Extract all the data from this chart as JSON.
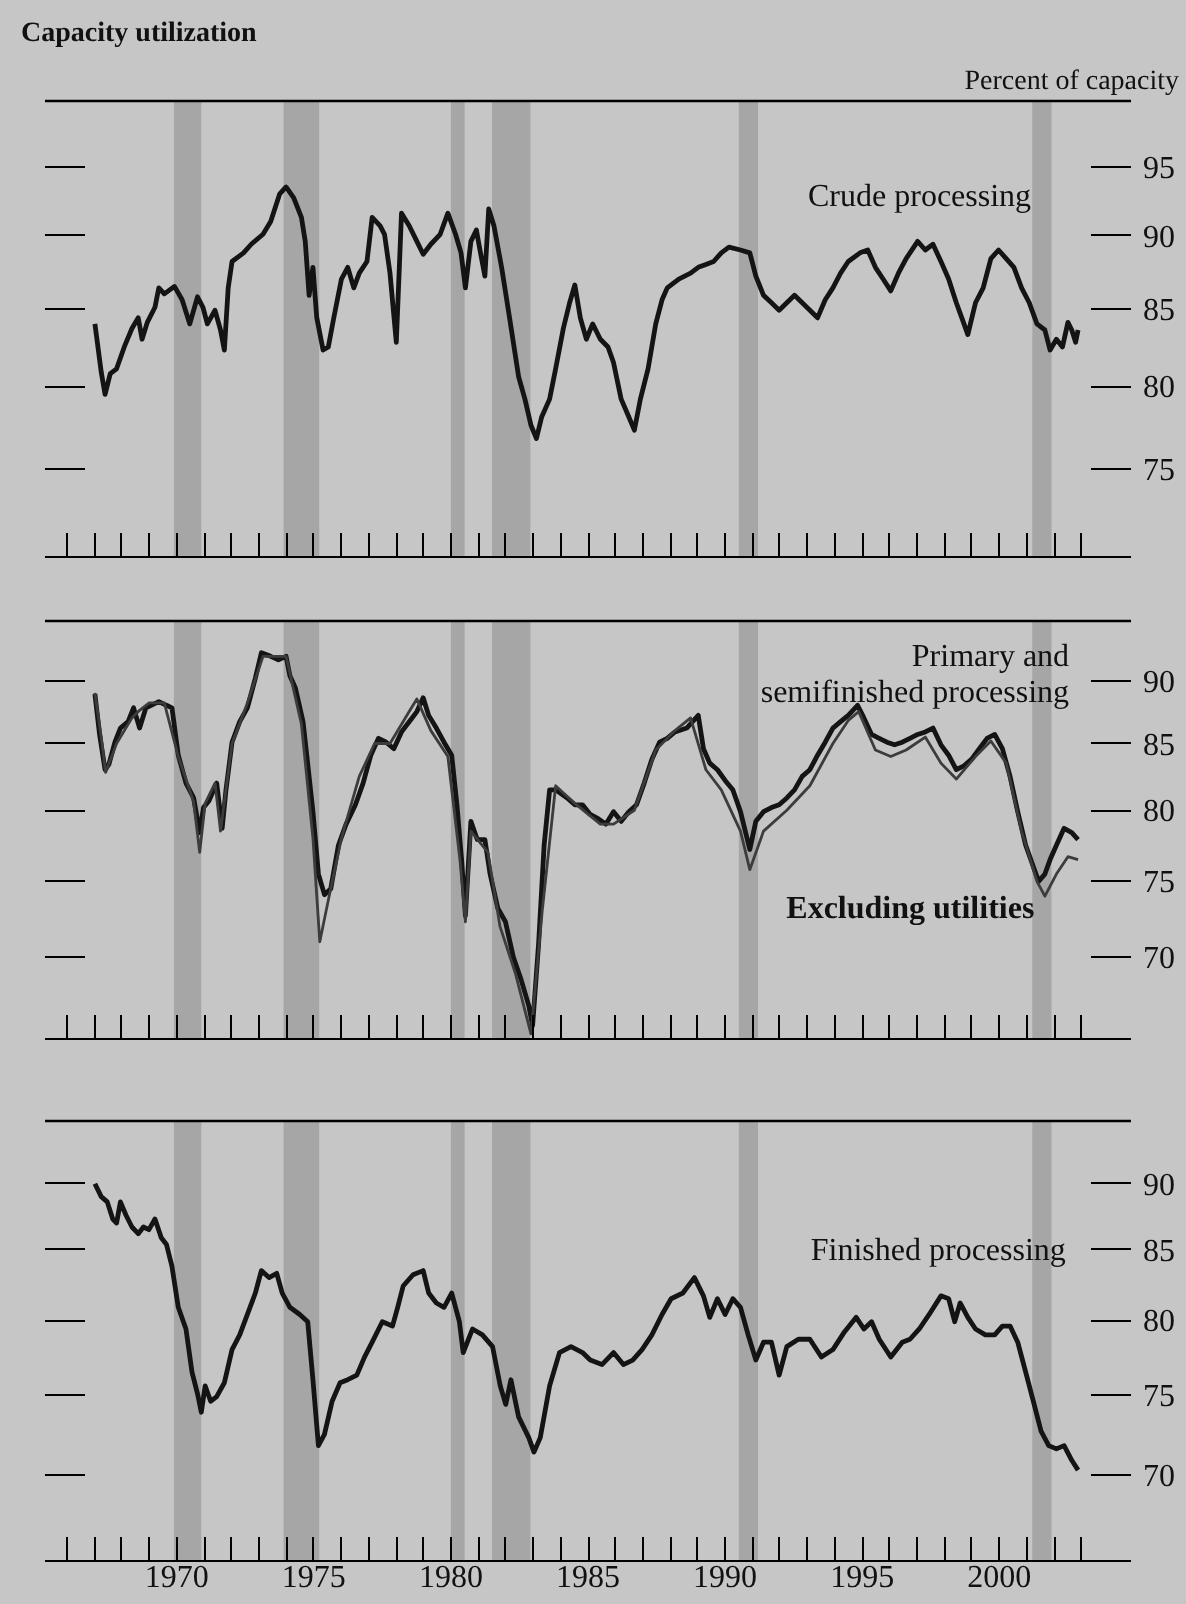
{
  "chart_data": [
    {
      "type": "line",
      "title": "Capacity utilization",
      "ylabel": "Percent of capacity",
      "log": "y",
      "grid": false,
      "legend": false,
      "marker": "none",
      "line_style": "solid",
      "tick_labels": "y",
      "xlim": [
        1965.2,
        2004.8
      ],
      "ylim": [
        70,
        100
      ],
      "yticks": [
        75,
        80,
        85,
        90,
        95
      ],
      "xticks": [
        {
          "value": 1966,
          "label": null
        },
        {
          "value": 1967,
          "label": null
        },
        {
          "value": 1968,
          "label": null
        },
        {
          "value": 1969,
          "label": null
        },
        {
          "value": 1970,
          "label": null
        },
        {
          "value": 1971,
          "label": null
        },
        {
          "value": 1972,
          "label": null
        },
        {
          "value": 1973,
          "label": null
        },
        {
          "value": 1974,
          "label": null
        },
        {
          "value": 1975,
          "label": null
        },
        {
          "value": 1976,
          "label": null
        },
        {
          "value": 1977,
          "label": null
        },
        {
          "value": 1978,
          "label": null
        },
        {
          "value": 1979,
          "label": null
        },
        {
          "value": 1980,
          "label": null
        },
        {
          "value": 1981,
          "label": null
        },
        {
          "value": 1982,
          "label": null
        },
        {
          "value": 1983,
          "label": null
        },
        {
          "value": 1984,
          "label": null
        },
        {
          "value": 1985,
          "label": null
        },
        {
          "value": 1986,
          "label": null
        },
        {
          "value": 1987,
          "label": null
        },
        {
          "value": 1988,
          "label": null
        },
        {
          "value": 1989,
          "label": null
        },
        {
          "value": 1990,
          "label": null
        },
        {
          "value": 1991,
          "label": null
        },
        {
          "value": 1992,
          "label": null
        },
        {
          "value": 1993,
          "label": null
        },
        {
          "value": 1994,
          "label": null
        },
        {
          "value": 1995,
          "label": null
        },
        {
          "value": 1996,
          "label": null
        },
        {
          "value": 1997,
          "label": null
        },
        {
          "value": 1998,
          "label": null
        },
        {
          "value": 1999,
          "label": null
        },
        {
          "value": 2000,
          "label": null
        },
        {
          "value": 2001,
          "label": null
        },
        {
          "value": 2002,
          "label": null
        },
        {
          "value": 2003,
          "label": null
        }
      ],
      "bands": [
        {
          "axis": "x",
          "from": 1969.9,
          "to": 1970.9,
          "color": "#a6a6a6"
        },
        {
          "axis": "x",
          "from": 1973.9,
          "to": 1975.2,
          "color": "#a6a6a6"
        },
        {
          "axis": "x",
          "from": 1980.0,
          "to": 1980.5,
          "color": "#a6a6a6"
        },
        {
          "axis": "x",
          "from": 1981.5,
          "to": 1982.9,
          "color": "#a6a6a6"
        },
        {
          "axis": "x",
          "from": 1990.5,
          "to": 1991.2,
          "color": "#a6a6a6"
        },
        {
          "axis": "x",
          "from": 2001.2,
          "to": 2001.9,
          "color": "#a6a6a6"
        }
      ],
      "series": [
        {
          "name": "Crude processing",
          "color": "#141414",
          "x": [
            1967.02,
            1967.25,
            1967.39,
            1967.58,
            1967.81,
            1968.09,
            1968.37,
            1968.6,
            1968.74,
            1968.93,
            1969.21,
            1969.35,
            1969.55,
            1969.92,
            1970.2,
            1970.48,
            1970.76,
            1970.96,
            1971.12,
            1971.4,
            1971.6,
            1971.74,
            1971.88,
            1972.02,
            1972.44,
            1972.72,
            1973.15,
            1973.43,
            1973.76,
            1973.99,
            1974.27,
            1974.55,
            1974.69,
            1974.83,
            1974.97,
            1975.11,
            1975.34,
            1975.53,
            1975.73,
            1976.01,
            1976.24,
            1976.46,
            1976.66,
            1976.94,
            1977.13,
            1977.42,
            1977.58,
            1977.78,
            1978.01,
            1978.2,
            1978.48,
            1978.76,
            1978.99,
            1979.27,
            1979.61,
            1979.89,
            1980.17,
            1980.37,
            1980.53,
            1980.73,
            1980.93,
            1981.07,
            1981.24,
            1981.38,
            1981.57,
            1981.85,
            1982.14,
            1982.47,
            1982.7,
            1982.92,
            1983.12,
            1983.31,
            1983.6,
            1983.82,
            1984.1,
            1984.33,
            1984.52,
            1984.72,
            1984.94,
            1985.17,
            1985.45,
            1985.73,
            1985.93,
            1986.21,
            1986.49,
            1986.69,
            1986.91,
            1987.19,
            1987.47,
            1987.7,
            1987.89,
            1988.31,
            1988.74,
            1989.02,
            1989.3,
            1989.58,
            1989.86,
            1990.14,
            1990.56,
            1990.9,
            1991.12,
            1991.4,
            1991.69,
            1991.97,
            1992.25,
            1992.53,
            1992.81,
            1993.09,
            1993.37,
            1993.65,
            1993.93,
            1994.21,
            1994.49,
            1994.92,
            1995.2,
            1995.48,
            1995.76,
            1996.04,
            1996.32,
            1996.6,
            1997.02,
            1997.3,
            1997.58,
            1997.87,
            1998.15,
            1998.43,
            1998.71,
            1998.85,
            1999.13,
            1999.41,
            1999.69,
            1999.97,
            2000.25,
            2000.53,
            2000.81,
            2001.09,
            2001.37,
            2001.66,
            2001.85,
            2002.08,
            2002.3,
            2002.5,
            2002.64,
            2002.78,
            2002.87
          ],
          "values": [
            84.0,
            80.9,
            79.5,
            80.8,
            81.1,
            82.5,
            83.7,
            84.4,
            83.0,
            84.1,
            85.1,
            86.4,
            86.0,
            86.5,
            85.6,
            84.0,
            85.8,
            85.1,
            84.0,
            84.9,
            83.6,
            82.3,
            86.4,
            88.2,
            88.8,
            89.4,
            90.1,
            91.0,
            93.0,
            93.5,
            92.7,
            91.3,
            89.6,
            85.9,
            87.8,
            84.4,
            82.3,
            82.5,
            84.4,
            87.0,
            87.8,
            86.4,
            87.4,
            88.2,
            91.3,
            90.7,
            90.1,
            87.4,
            82.8,
            91.6,
            90.7,
            89.6,
            88.7,
            89.4,
            90.1,
            91.6,
            90.1,
            88.8,
            86.4,
            89.6,
            90.4,
            88.9,
            87.2,
            91.9,
            90.7,
            87.8,
            84.4,
            80.6,
            79.2,
            77.6,
            76.8,
            78.1,
            79.2,
            81.1,
            83.7,
            85.4,
            86.6,
            84.4,
            83.0,
            84.0,
            83.0,
            82.5,
            81.5,
            79.2,
            78.1,
            77.3,
            79.2,
            81.1,
            84.0,
            85.6,
            86.4,
            87.0,
            87.4,
            87.8,
            88.0,
            88.2,
            88.8,
            89.2,
            89.0,
            88.8,
            87.2,
            85.9,
            85.4,
            84.9,
            85.4,
            85.9,
            85.4,
            84.9,
            84.4,
            85.6,
            86.4,
            87.4,
            88.2,
            88.8,
            89.0,
            87.8,
            87.0,
            86.2,
            87.4,
            88.4,
            89.6,
            89.0,
            89.4,
            88.2,
            87.0,
            85.4,
            84.0,
            83.3,
            85.4,
            86.4,
            88.4,
            89.0,
            88.4,
            87.8,
            86.4,
            85.4,
            84.0,
            83.6,
            82.3,
            83.0,
            82.5,
            84.1,
            83.6,
            82.8,
            83.6
          ]
        }
      ]
    },
    {
      "type": "line",
      "log": "y",
      "grid": false,
      "legend": false,
      "marker": "none",
      "line_style": "solid",
      "tick_labels": "y",
      "xlim": [
        1965.2,
        2004.8
      ],
      "ylim": [
        65,
        95
      ],
      "yticks": [
        70,
        75,
        80,
        85,
        90
      ],
      "xticks": [
        {
          "value": 1966,
          "label": null
        },
        {
          "value": 1967,
          "label": null
        },
        {
          "value": 1968,
          "label": null
        },
        {
          "value": 1969,
          "label": null
        },
        {
          "value": 1970,
          "label": null
        },
        {
          "value": 1971,
          "label": null
        },
        {
          "value": 1972,
          "label": null
        },
        {
          "value": 1973,
          "label": null
        },
        {
          "value": 1974,
          "label": null
        },
        {
          "value": 1975,
          "label": null
        },
        {
          "value": 1976,
          "label": null
        },
        {
          "value": 1977,
          "label": null
        },
        {
          "value": 1978,
          "label": null
        },
        {
          "value": 1979,
          "label": null
        },
        {
          "value": 1980,
          "label": null
        },
        {
          "value": 1981,
          "label": null
        },
        {
          "value": 1982,
          "label": null
        },
        {
          "value": 1983,
          "label": null
        },
        {
          "value": 1984,
          "label": null
        },
        {
          "value": 1985,
          "label": null
        },
        {
          "value": 1986,
          "label": null
        },
        {
          "value": 1987,
          "label": null
        },
        {
          "value": 1988,
          "label": null
        },
        {
          "value": 1989,
          "label": null
        },
        {
          "value": 1990,
          "label": null
        },
        {
          "value": 1991,
          "label": null
        },
        {
          "value": 1992,
          "label": null
        },
        {
          "value": 1993,
          "label": null
        },
        {
          "value": 1994,
          "label": null
        },
        {
          "value": 1995,
          "label": null
        },
        {
          "value": 1996,
          "label": null
        },
        {
          "value": 1997,
          "label": null
        },
        {
          "value": 1998,
          "label": null
        },
        {
          "value": 1999,
          "label": null
        },
        {
          "value": 2000,
          "label": null
        },
        {
          "value": 2001,
          "label": null
        },
        {
          "value": 2002,
          "label": null
        },
        {
          "value": 2003,
          "label": null
        }
      ],
      "bands": [
        {
          "axis": "x",
          "from": 1969.9,
          "to": 1970.9,
          "color": "#a6a6a6"
        },
        {
          "axis": "x",
          "from": 1973.9,
          "to": 1975.2,
          "color": "#a6a6a6"
        },
        {
          "axis": "x",
          "from": 1980.0,
          "to": 1980.5,
          "color": "#a6a6a6"
        },
        {
          "axis": "x",
          "from": 1981.5,
          "to": 1982.9,
          "color": "#a6a6a6"
        },
        {
          "axis": "x",
          "from": 1990.5,
          "to": 1991.2,
          "color": "#a6a6a6"
        },
        {
          "axis": "x",
          "from": 2001.2,
          "to": 2001.9,
          "color": "#a6a6a6"
        }
      ],
      "series": [
        {
          "name": "Primary and\nsemifinished processing",
          "color": "#141414",
          "x": [
            1967.02,
            1967.19,
            1967.39,
            1967.53,
            1967.75,
            1967.95,
            1968.23,
            1968.43,
            1968.65,
            1968.88,
            1969.07,
            1969.35,
            1969.63,
            1969.83,
            1970.06,
            1970.34,
            1970.62,
            1970.84,
            1970.98,
            1971.18,
            1971.46,
            1971.66,
            1971.8,
            1972.02,
            1972.3,
            1972.58,
            1972.87,
            1973.09,
            1973.43,
            1973.71,
            1973.99,
            1974.13,
            1974.33,
            1974.61,
            1974.83,
            1974.97,
            1975.17,
            1975.39,
            1975.62,
            1975.9,
            1976.18,
            1976.52,
            1976.8,
            1977.08,
            1977.36,
            1977.64,
            1977.92,
            1978.2,
            1978.48,
            1978.76,
            1978.99,
            1979.19,
            1979.47,
            1979.75,
            1980.03,
            1980.22,
            1980.39,
            1980.53,
            1980.73,
            1980.96,
            1981.24,
            1981.43,
            1981.71,
            1981.99,
            1982.28,
            1982.56,
            1982.84,
            1982.98,
            1983.2,
            1983.4,
            1983.6,
            1983.82,
            1984.24,
            1984.52,
            1984.8,
            1985.08,
            1985.37,
            1985.65,
            1985.93,
            1986.21,
            1986.49,
            1986.77,
            1987.05,
            1987.33,
            1987.61,
            1987.89,
            1988.17,
            1988.6,
            1989.02,
            1989.21,
            1989.44,
            1989.72,
            1990.0,
            1990.28,
            1990.56,
            1990.9,
            1991.12,
            1991.4,
            1991.69,
            1991.97,
            1992.25,
            1992.53,
            1992.81,
            1993.09,
            1993.37,
            1993.65,
            1993.93,
            1994.21,
            1994.49,
            1994.83,
            1995.06,
            1995.34,
            1995.62,
            1995.9,
            1996.18,
            1996.46,
            1996.74,
            1997.02,
            1997.3,
            1997.58,
            1997.87,
            1998.15,
            1998.43,
            1998.71,
            1998.99,
            1999.27,
            1999.55,
            1999.83,
            2000.11,
            2000.39,
            2000.67,
            2000.96,
            2001.24,
            2001.43,
            2001.66,
            2001.85,
            2002.08,
            2002.36,
            2002.64,
            2002.87
          ],
          "values": [
            88.9,
            85.7,
            83.0,
            83.4,
            85.1,
            86.2,
            86.7,
            87.8,
            86.2,
            87.8,
            88.0,
            88.3,
            88.0,
            87.8,
            84.1,
            82.0,
            80.9,
            78.4,
            80.2,
            80.7,
            82.0,
            78.7,
            81.5,
            85.1,
            86.7,
            87.8,
            90.2,
            92.3,
            92.0,
            91.7,
            92.0,
            90.4,
            89.4,
            86.7,
            82.5,
            79.9,
            75.5,
            74.1,
            74.5,
            77.5,
            79.0,
            80.4,
            82.0,
            84.1,
            85.4,
            85.1,
            84.6,
            85.9,
            86.7,
            87.5,
            88.6,
            87.2,
            86.2,
            85.1,
            84.1,
            80.4,
            76.5,
            72.7,
            79.2,
            77.9,
            77.9,
            75.5,
            73.2,
            72.3,
            70.0,
            68.6,
            67.0,
            65.8,
            70.9,
            77.5,
            81.5,
            81.5,
            80.9,
            80.4,
            80.4,
            79.7,
            79.4,
            79.0,
            79.9,
            79.2,
            79.9,
            80.4,
            82.0,
            83.8,
            85.1,
            85.4,
            85.9,
            86.2,
            87.2,
            84.6,
            83.5,
            83.0,
            82.2,
            81.5,
            79.9,
            77.2,
            79.2,
            79.9,
            80.2,
            80.4,
            80.9,
            81.5,
            82.5,
            83.0,
            84.1,
            85.1,
            86.2,
            86.7,
            87.2,
            88.0,
            87.0,
            85.7,
            85.4,
            85.1,
            84.9,
            85.1,
            85.4,
            85.7,
            85.9,
            86.2,
            84.9,
            84.1,
            83.0,
            83.3,
            83.8,
            84.6,
            85.4,
            85.7,
            84.6,
            82.5,
            79.9,
            77.5,
            76.0,
            75.0,
            75.5,
            76.5,
            77.5,
            78.7,
            78.4,
            77.9
          ]
        },
        {
          "name": "Excluding utilities",
          "color": "#3c3c3c",
          "x": [
            1967.02,
            1967.25,
            1967.41,
            1967.81,
            1968.37,
            1968.65,
            1969.0,
            1969.55,
            1970.06,
            1970.62,
            1970.84,
            1971.04,
            1971.4,
            1971.6,
            1972.02,
            1972.55,
            1973.15,
            1973.99,
            1974.55,
            1974.97,
            1975.22,
            1975.56,
            1976.01,
            1976.66,
            1977.22,
            1977.78,
            1978.48,
            1978.76,
            1979.27,
            1979.89,
            1980.33,
            1980.53,
            1980.73,
            1981.35,
            1981.79,
            1982.35,
            1982.92,
            1983.33,
            1983.82,
            1984.52,
            1985.45,
            1985.93,
            1986.69,
            1987.47,
            1988.17,
            1988.74,
            1989.3,
            1989.86,
            1990.56,
            1990.9,
            1991.4,
            1992.25,
            1993.09,
            1993.93,
            1994.49,
            1994.87,
            1995.48,
            1996.04,
            1996.6,
            1997.3,
            1997.87,
            1998.43,
            1999.13,
            1999.69,
            2000.25,
            2000.81,
            2001.37,
            2001.66,
            2002.08,
            2002.5,
            2002.87
          ],
          "values": [
            89.0,
            85.5,
            82.8,
            85.0,
            87.0,
            87.6,
            88.2,
            88.2,
            84.0,
            80.6,
            77.0,
            80.5,
            82.0,
            78.5,
            85.0,
            88.0,
            92.0,
            92.0,
            86.5,
            78.0,
            71.0,
            74.0,
            78.0,
            82.5,
            85.0,
            85.0,
            87.5,
            88.5,
            86.0,
            84.0,
            76.5,
            72.3,
            78.5,
            77.0,
            72.0,
            69.0,
            65.3,
            73.0,
            81.8,
            80.5,
            79.0,
            79.0,
            80.0,
            84.5,
            86.0,
            87.0,
            83.0,
            81.5,
            78.5,
            75.8,
            78.5,
            80.0,
            81.8,
            85.0,
            86.8,
            87.5,
            84.5,
            84.0,
            84.5,
            85.5,
            83.5,
            82.3,
            84.0,
            85.2,
            83.5,
            78.5,
            75.0,
            74.0,
            75.5,
            76.7,
            76.5
          ]
        }
      ]
    },
    {
      "type": "line",
      "log": "y",
      "grid": false,
      "legend": false,
      "marker": "none",
      "line_style": "solid",
      "xlim": [
        1965.2,
        2004.8
      ],
      "ylim": [
        65,
        95
      ],
      "yticks": [
        70,
        75,
        80,
        85,
        90
      ],
      "xticks": [
        {
          "value": 1966,
          "label": null
        },
        {
          "value": 1967,
          "label": null
        },
        {
          "value": 1968,
          "label": null
        },
        {
          "value": 1969,
          "label": null
        },
        1970,
        {
          "value": 1971,
          "label": null
        },
        {
          "value": 1972,
          "label": null
        },
        {
          "value": 1973,
          "label": null
        },
        {
          "value": 1974,
          "label": null
        },
        1975,
        {
          "value": 1976,
          "label": null
        },
        {
          "value": 1977,
          "label": null
        },
        {
          "value": 1978,
          "label": null
        },
        {
          "value": 1979,
          "label": null
        },
        1980,
        {
          "value": 1981,
          "label": null
        },
        {
          "value": 1982,
          "label": null
        },
        {
          "value": 1983,
          "label": null
        },
        {
          "value": 1984,
          "label": null
        },
        1985,
        {
          "value": 1986,
          "label": null
        },
        {
          "value": 1987,
          "label": null
        },
        {
          "value": 1988,
          "label": null
        },
        {
          "value": 1989,
          "label": null
        },
        1990,
        {
          "value": 1991,
          "label": null
        },
        {
          "value": 1992,
          "label": null
        },
        {
          "value": 1993,
          "label": null
        },
        {
          "value": 1994,
          "label": null
        },
        1995,
        {
          "value": 1996,
          "label": null
        },
        {
          "value": 1997,
          "label": null
        },
        {
          "value": 1998,
          "label": null
        },
        {
          "value": 1999,
          "label": null
        },
        2000,
        {
          "value": 2001,
          "label": null
        },
        {
          "value": 2002,
          "label": null
        },
        {
          "value": 2003,
          "label": null
        }
      ],
      "bands": [
        {
          "axis": "x",
          "from": 1969.9,
          "to": 1970.9,
          "color": "#a6a6a6"
        },
        {
          "axis": "x",
          "from": 1973.9,
          "to": 1975.2,
          "color": "#a6a6a6"
        },
        {
          "axis": "x",
          "from": 1980.0,
          "to": 1980.5,
          "color": "#a6a6a6"
        },
        {
          "axis": "x",
          "from": 1981.5,
          "to": 1982.9,
          "color": "#a6a6a6"
        },
        {
          "axis": "x",
          "from": 1990.5,
          "to": 1991.2,
          "color": "#a6a6a6"
        },
        {
          "axis": "x",
          "from": 2001.2,
          "to": 2001.9,
          "color": "#a6a6a6"
        }
      ],
      "series": [
        {
          "name": "Finished processing",
          "color": "#141414",
          "x": [
            1967.02,
            1967.25,
            1967.47,
            1967.67,
            1967.81,
            1967.95,
            1968.15,
            1968.37,
            1968.6,
            1968.79,
            1968.99,
            1969.21,
            1969.44,
            1969.63,
            1969.83,
            1970.06,
            1970.34,
            1970.56,
            1970.76,
            1970.9,
            1971.04,
            1971.24,
            1971.46,
            1971.74,
            1972.02,
            1972.3,
            1972.58,
            1972.87,
            1973.09,
            1973.37,
            1973.65,
            1973.85,
            1974.13,
            1974.49,
            1974.78,
            1974.97,
            1975.17,
            1975.39,
            1975.67,
            1975.96,
            1976.24,
            1976.57,
            1976.85,
            1977.13,
            1977.5,
            1977.87,
            1978.06,
            1978.26,
            1978.62,
            1978.99,
            1979.19,
            1979.47,
            1979.75,
            1980.03,
            1980.31,
            1980.45,
            1980.79,
            1981.15,
            1981.52,
            1981.8,
            1982.0,
            1982.19,
            1982.47,
            1982.84,
            1983.03,
            1983.26,
            1983.6,
            1983.96,
            1984.38,
            1984.8,
            1985.08,
            1985.51,
            1985.93,
            1986.29,
            1986.63,
            1986.97,
            1987.33,
            1987.7,
            1988.03,
            1988.46,
            1988.88,
            1989.21,
            1989.44,
            1989.72,
            1990.0,
            1990.28,
            1990.56,
            1990.84,
            1991.12,
            1991.4,
            1991.69,
            1991.97,
            1992.25,
            1992.67,
            1993.09,
            1993.51,
            1993.93,
            1994.35,
            1994.78,
            1995.06,
            1995.34,
            1995.62,
            1996.04,
            1996.46,
            1996.74,
            1997.08,
            1997.44,
            1997.87,
            1998.15,
            1998.37,
            1998.57,
            1998.85,
            1999.13,
            1999.49,
            1999.83,
            2000.11,
            2000.39,
            2000.67,
            2000.96,
            2001.24,
            2001.52,
            2001.8,
            2002.08,
            2002.36,
            2002.64,
            2002.87
          ],
          "values": [
            90.0,
            89.0,
            88.6,
            87.3,
            87.0,
            88.6,
            87.6,
            86.7,
            86.2,
            86.7,
            86.5,
            87.3,
            85.9,
            85.4,
            83.8,
            80.9,
            79.4,
            76.5,
            75.1,
            73.9,
            75.6,
            74.6,
            74.9,
            75.8,
            78.0,
            79.0,
            80.4,
            81.9,
            83.5,
            83.0,
            83.3,
            81.9,
            80.9,
            80.4,
            79.9,
            76.0,
            71.8,
            72.5,
            74.6,
            75.8,
            76.0,
            76.3,
            77.5,
            78.5,
            79.9,
            79.6,
            80.9,
            82.4,
            83.2,
            83.5,
            81.9,
            81.2,
            80.9,
            81.9,
            79.9,
            77.8,
            79.4,
            79.0,
            78.2,
            75.6,
            74.4,
            76.0,
            73.6,
            72.3,
            71.4,
            72.3,
            75.6,
            77.8,
            78.2,
            77.8,
            77.3,
            77.0,
            77.8,
            77.0,
            77.3,
            78.0,
            79.0,
            80.4,
            81.5,
            81.9,
            83.0,
            81.7,
            80.2,
            81.5,
            80.4,
            81.5,
            80.9,
            79.0,
            77.3,
            78.5,
            78.5,
            76.3,
            78.2,
            78.7,
            78.7,
            77.5,
            78.0,
            79.2,
            80.2,
            79.4,
            79.9,
            78.7,
            77.5,
            78.5,
            78.7,
            79.4,
            80.4,
            81.7,
            81.5,
            79.9,
            81.2,
            80.2,
            79.4,
            79.0,
            79.0,
            79.6,
            79.6,
            78.5,
            76.5,
            74.6,
            72.7,
            71.8,
            71.6,
            71.8,
            70.9,
            70.3
          ]
        }
      ]
    }
  ]
}
